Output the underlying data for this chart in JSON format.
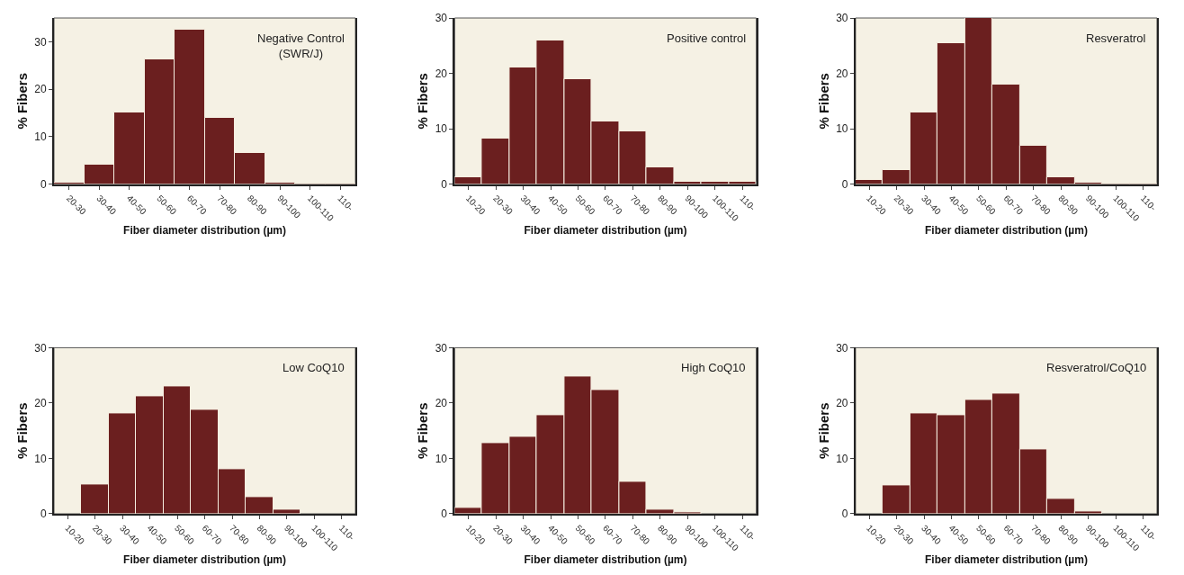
{
  "chart_data": [
    {
      "type": "bar",
      "categories": [
        "20-30",
        "30-40",
        "40-50",
        "50-60",
        "60-70",
        "70-80",
        "80-90",
        "90-100",
        "100-110",
        "110-"
      ],
      "values": [
        0.3,
        4,
        15,
        26.3,
        32.6,
        13.9,
        6.5,
        0.3,
        0.2,
        0.2
      ],
      "color": "#6b1f1f",
      "ylim": [
        0,
        35
      ],
      "yticks": [
        0,
        10,
        20,
        30
      ],
      "ylabel": "% Fibers",
      "xlabel": "Fiber diameter distribution (µm)",
      "annotations": [
        "Negative Control\n(SWR/J)"
      ],
      "grid": false
    },
    {
      "type": "bar",
      "categories": [
        "10-20",
        "20-30",
        "30-40",
        "40-50",
        "50-60",
        "60-70",
        "70-80",
        "80-90",
        "90-100",
        "100-110",
        "110-"
      ],
      "values": [
        1.2,
        8.3,
        21,
        26,
        19,
        11.3,
        9.6,
        3,
        0.5,
        0.4,
        0.5
      ],
      "color": "#6b1f1f",
      "ylim": [
        0,
        30
      ],
      "yticks": [
        0,
        10,
        20,
        30
      ],
      "ylabel": "% Fibers",
      "xlabel": "Fiber diameter distribution (µm)",
      "annotations": [
        "Positive control"
      ],
      "grid": false
    },
    {
      "type": "bar",
      "categories": [
        "10-20",
        "20-30",
        "30-40",
        "40-50",
        "50-60",
        "60-70",
        "70-80",
        "80-90",
        "90-100",
        "100-110",
        "110-"
      ],
      "values": [
        0.7,
        2.5,
        13,
        25.5,
        30,
        18,
        7,
        1.2,
        0.2,
        0.1,
        0.1
      ],
      "color": "#6b1f1f",
      "ylim": [
        0,
        30
      ],
      "yticks": [
        0,
        10,
        20,
        30
      ],
      "ylabel": "% Fibers",
      "xlabel": "Fiber diameter distribution (µm)",
      "annotations": [
        "Resveratrol"
      ],
      "grid": false
    },
    {
      "type": "bar",
      "categories": [
        "10-20",
        "20-30",
        "30-40",
        "40-50",
        "50-60",
        "60-70",
        "70-80",
        "80-90",
        "90-100",
        "100-110",
        "110-"
      ],
      "values": [
        0,
        5.3,
        18.2,
        21.3,
        23,
        18.8,
        8,
        3.1,
        0.8,
        null,
        null
      ],
      "color": "#6b1f1f",
      "ylim": [
        0,
        30
      ],
      "yticks": [
        0,
        10,
        20,
        30
      ],
      "ylabel": "% Fibers",
      "xlabel": "Fiber diameter distribution (µm)",
      "annotations": [
        "Low CoQ10"
      ],
      "grid": false
    },
    {
      "type": "bar",
      "categories": [
        "10-20",
        "20-30",
        "30-40",
        "40-50",
        "50-60",
        "60-70",
        "70-80",
        "80-90",
        "90-100",
        "100-110",
        "110-"
      ],
      "values": [
        1.1,
        12.7,
        13.9,
        17.8,
        24.8,
        22.4,
        5.8,
        0.7,
        0.3,
        null,
        null
      ],
      "color": "#6b1f1f",
      "ylim": [
        0,
        30
      ],
      "yticks": [
        0,
        10,
        20,
        30
      ],
      "ylabel": "% Fibers",
      "xlabel": "Fiber diameter distribution (µm)",
      "annotations": [
        "High CoQ10"
      ],
      "grid": false
    },
    {
      "type": "bar",
      "categories": [
        "10-20",
        "20-30",
        "30-40",
        "40-50",
        "50-60",
        "60-70",
        "70-80",
        "80-90",
        "90-100",
        "100-110",
        "110-"
      ],
      "values": [
        0,
        5.1,
        18.2,
        17.8,
        20.6,
        21.7,
        11.6,
        2.7,
        0.4,
        null,
        0
      ],
      "color": "#6b1f1f",
      "ylim": [
        0,
        30
      ],
      "yticks": [
        0,
        10,
        20,
        30
      ],
      "ylabel": "% Fibers",
      "xlabel": "Fiber diameter distribution (µm)",
      "annotations": [
        "Resveratrol/CoQ10"
      ],
      "grid": false
    }
  ]
}
